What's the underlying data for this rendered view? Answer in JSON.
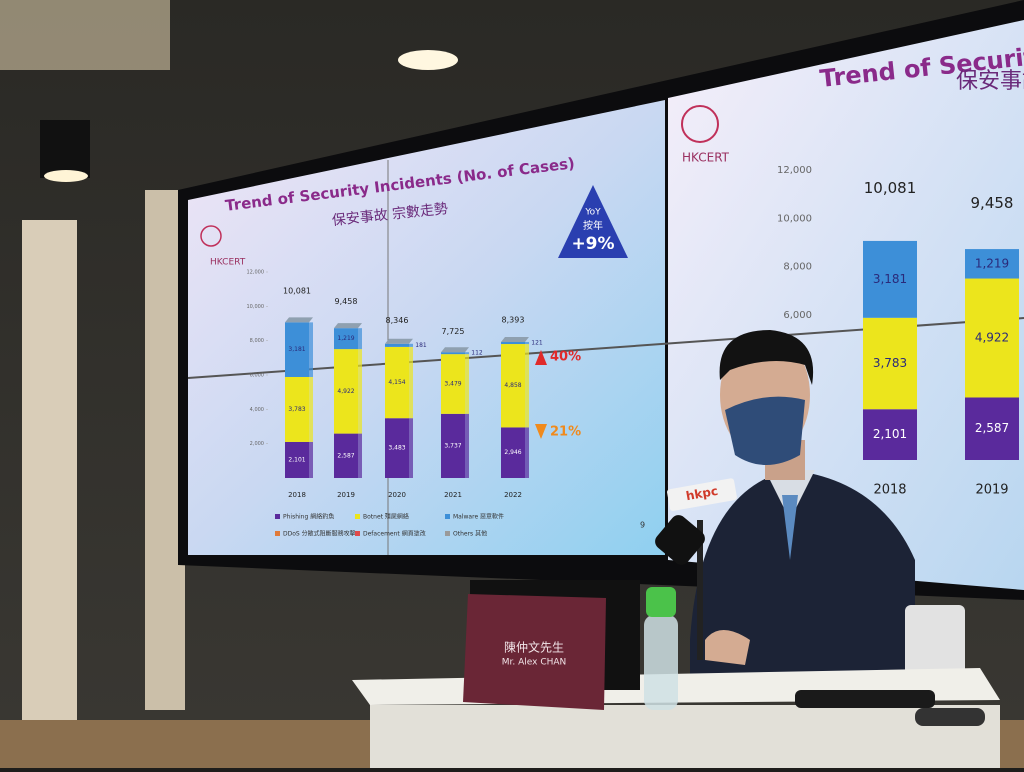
{
  "screen": {
    "logo": "HKCERT",
    "title": "Trend of Security Incidents (No. of Cases)",
    "subtitle": "保安事故 宗數走勢",
    "badge": {
      "line1": "YoY",
      "line2": "按年",
      "line3": "+9%"
    },
    "page_number": "9",
    "chart": {
      "categories": [
        "2018",
        "2019",
        "2020",
        "2021",
        "2022"
      ],
      "ylim": [
        0,
        12000
      ],
      "yticks": [
        {
          "value": 2000,
          "label": "2,000"
        },
        {
          "value": 4000,
          "label": "4,000"
        },
        {
          "value": 6000,
          "label": "6,000"
        },
        {
          "value": 8000,
          "label": "8,000"
        },
        {
          "value": 10000,
          "label": "10,000"
        },
        {
          "value": 12000,
          "label": "12,000"
        }
      ],
      "series": [
        {
          "name": "Phishing 網絡釣魚",
          "color": "#5a2a9c",
          "values": [
            2101,
            2587,
            3483,
            3737,
            2946
          ],
          "value_labels": [
            "2,101",
            "2,587",
            "3,483",
            "3,737",
            "2,946"
          ]
        },
        {
          "name": "Botnet 殭屍網絡",
          "color": "#ece51c",
          "values": [
            3783,
            4922,
            4154,
            3479,
            4858
          ],
          "value_labels": [
            "3,783",
            "4,922",
            "4,154",
            "3,479",
            "4,858"
          ]
        },
        {
          "name": "Malware 惡意軟件",
          "color": "#3d8fd8",
          "values": [
            3181,
            1219,
            181,
            112,
            121
          ],
          "value_labels": [
            "3,181",
            "1,219",
            "181",
            "112",
            "121"
          ]
        }
      ],
      "other_legend": [
        "DDoS 分散式阻斷服務攻擊",
        "Defacement 網頁塗改",
        "Others 其他"
      ],
      "totals": [
        {
          "value": 10081,
          "label": "10,081"
        },
        {
          "value": 9458,
          "label": "9,458"
        },
        {
          "value": 8346,
          "label": "8,346"
        },
        {
          "value": 7725,
          "label": "7,725"
        },
        {
          "value": 8393,
          "label": "8,393"
        }
      ],
      "annotations": [
        {
          "text": "40%",
          "direction": "up",
          "color": "#e02a2a"
        },
        {
          "text": "21%",
          "direction": "down",
          "color": "#f08a1c"
        }
      ]
    }
  },
  "mic_label": "hkpc",
  "nameplate": {
    "name_zh": "陳仲文先生",
    "name_en": "Mr. Alex CHAN"
  }
}
